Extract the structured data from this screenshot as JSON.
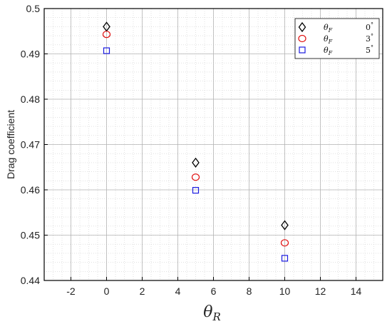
{
  "chart_data": {
    "type": "scatter",
    "title": "",
    "xlabel": "θ",
    "xlabel_subscript": "R",
    "ylabel": "Drag coefficient",
    "xlim": [
      -3.5,
      15.5
    ],
    "ylim": [
      0.44,
      0.5
    ],
    "x_ticks": [
      -2,
      0,
      2,
      4,
      6,
      8,
      10,
      12,
      14
    ],
    "x_tick_labels": [
      "-2",
      "0",
      "2",
      "4",
      "6",
      "8",
      "10",
      "12",
      "14"
    ],
    "y_ticks": [
      0.44,
      0.45,
      0.46,
      0.47,
      0.48,
      0.49,
      0.5
    ],
    "y_tick_labels": [
      "0.44",
      "0.45",
      "0.46",
      "0.47",
      "0.48",
      "0.49",
      "0.5"
    ],
    "grid": true,
    "minor_grid": true,
    "legend_position": "top-right",
    "series": [
      {
        "name": "θF 0°",
        "legend_symbol": "θ",
        "legend_subscript": "F",
        "legend_value": "0",
        "legend_unit": "°",
        "marker": "diamond",
        "color": "#000000",
        "x": [
          0,
          5,
          10
        ],
        "y": [
          0.496,
          0.466,
          0.4522
        ]
      },
      {
        "name": "θF 3°",
        "legend_symbol": "θ",
        "legend_subscript": "F",
        "legend_value": "3",
        "legend_unit": "°",
        "marker": "circle",
        "color": "#e01010",
        "x": [
          0,
          5,
          10
        ],
        "y": [
          0.4943,
          0.4628,
          0.4483
        ]
      },
      {
        "name": "θF 5°",
        "legend_symbol": "θ",
        "legend_subscript": "F",
        "legend_value": "5",
        "legend_unit": "°",
        "marker": "square",
        "color": "#1a1ae0",
        "x": [
          0,
          5,
          10
        ],
        "y": [
          0.4907,
          0.4599,
          0.4449
        ]
      }
    ]
  }
}
